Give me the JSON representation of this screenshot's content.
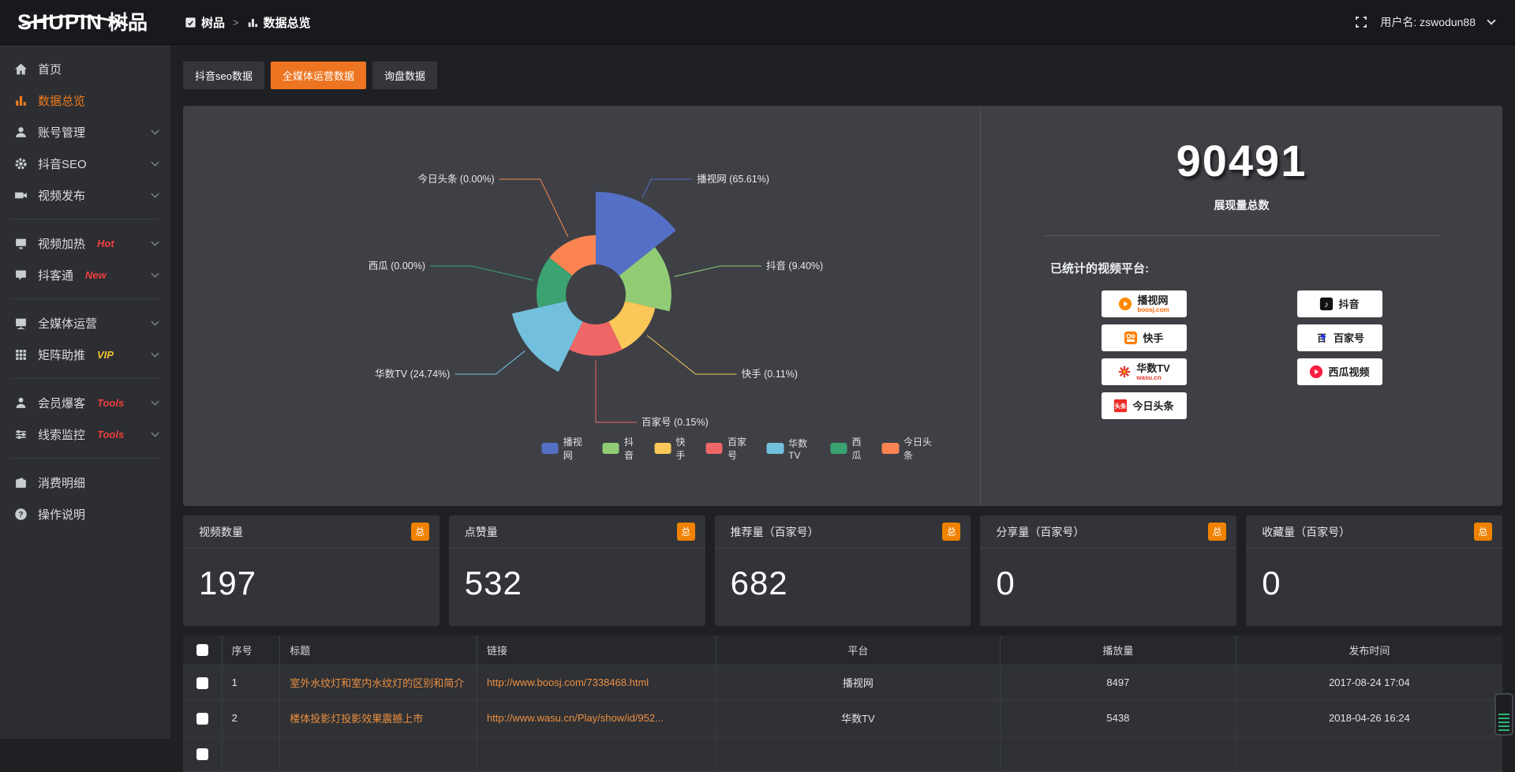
{
  "brand": {
    "logo_en": "SHUPIN",
    "logo_cn": "树品"
  },
  "topbar": {
    "breadcrumb_root": "树品",
    "breadcrumb_sep": ">",
    "breadcrumb_current": "数据总览",
    "username": "用户名: zswodun88",
    "icons": {
      "fullscreen": "fullscreen-icon",
      "root": "app-icon",
      "current": "bar-chart-icon",
      "caret": "chevron-down-icon"
    }
  },
  "sidebar": {
    "items": [
      {
        "label": "首页",
        "icon": "home-icon",
        "tag": ""
      },
      {
        "label": "数据总览",
        "icon": "bar-chart-icon",
        "tag": "",
        "active": true
      },
      {
        "label": "账号管理",
        "icon": "user-icon",
        "tag": "",
        "expandable": true
      },
      {
        "label": "抖音SEO",
        "icon": "gear-icon",
        "tag": "",
        "expandable": true
      },
      {
        "label": "视频发布",
        "icon": "video-icon",
        "tag": "",
        "expandable": true
      },
      {
        "label": "视频加热",
        "icon": "screen-icon",
        "tag": "Hot",
        "tag_color": "#f03e3e",
        "expandable": true
      },
      {
        "label": "抖客通",
        "icon": "chat-icon",
        "tag": "New",
        "tag_color": "#f03e3e",
        "expandable": true
      },
      {
        "label": "全媒体运营",
        "icon": "monitor-icon",
        "tag": "",
        "expandable": true
      },
      {
        "label": "矩阵助推",
        "icon": "grid-icon",
        "tag": "VIP",
        "tag_color": "#f1c232",
        "expandable": true
      },
      {
        "label": "会员爆客",
        "icon": "person-icon",
        "tag": "Tools",
        "tag_color": "#f03e3e",
        "expandable": true
      },
      {
        "label": "线索监控",
        "icon": "sliders-icon",
        "tag": "Tools",
        "tag_color": "#f03e3e",
        "expandable": true
      },
      {
        "label": "消费明细",
        "icon": "wallet-icon",
        "tag": ""
      },
      {
        "label": "操作说明",
        "icon": "help-icon",
        "tag": ""
      }
    ]
  },
  "tabs": [
    {
      "label": "抖音seo数据",
      "active": false
    },
    {
      "label": "全媒体运营数据",
      "active": true
    },
    {
      "label": "询盘数据",
      "active": false
    }
  ],
  "chart_data": {
    "type": "pie",
    "style": "nightingale-rose",
    "unit": "%",
    "series": [
      {
        "name": "播视网",
        "value": 65.61,
        "color": "#5470c6"
      },
      {
        "name": "抖音",
        "value": 9.4,
        "color": "#91cc75"
      },
      {
        "name": "快手",
        "value": 0.11,
        "color": "#fac858"
      },
      {
        "name": "百家号",
        "value": 0.15,
        "color": "#ee6666"
      },
      {
        "name": "华数TV",
        "value": 24.74,
        "color": "#73c0de"
      },
      {
        "name": "西瓜",
        "value": 0.0,
        "color": "#3ba272"
      },
      {
        "name": "今日头条",
        "value": 0.0,
        "color": "#fc8452"
      }
    ],
    "label_format": "{name} ({value}%)",
    "legend_position": "bottom",
    "inner_radius_px": 38,
    "outer_radius_px": 130
  },
  "summary": {
    "total": "90491",
    "total_label": "展现量总数",
    "platforms_label": "已统计的视频平台:",
    "platforms": [
      {
        "name": "播视网",
        "sub": "boosj.com",
        "icon": "boosj-logo",
        "color": "#ff8a00"
      },
      {
        "name": "快手",
        "sub": "",
        "icon": "kuaishou-logo",
        "color": "#ff7e00"
      },
      {
        "name": "华数TV",
        "sub": "wasu.cn",
        "icon": "wasu-logo",
        "color": "#e33b30"
      },
      {
        "name": "今日头条",
        "sub": "",
        "icon": "toutiao-logo",
        "color": "#ee2b24"
      },
      {
        "name": "抖音",
        "sub": "",
        "icon": "douyin-logo",
        "color": "#111111"
      },
      {
        "name": "百家号",
        "sub": "",
        "icon": "baijiahao-logo",
        "color": "#2932e1"
      },
      {
        "name": "西瓜视频",
        "sub": "",
        "icon": "xigua-logo",
        "color": "#fa1f41"
      }
    ]
  },
  "stat_cards": [
    {
      "title": "视频数量",
      "badge": "总",
      "value": "197"
    },
    {
      "title": "点赞量",
      "badge": "总",
      "value": "532"
    },
    {
      "title": "推荐量（百家号）",
      "badge": "总",
      "value": "682"
    },
    {
      "title": "分享量（百家号）",
      "badge": "总",
      "value": "0"
    },
    {
      "title": "收藏量（百家号）",
      "badge": "总",
      "value": "0"
    }
  ],
  "table": {
    "headers": [
      "序号",
      "标题",
      "链接",
      "平台",
      "播放量",
      "发布时间"
    ],
    "rows": [
      {
        "index": "1",
        "title": "室外水纹灯和室内水纹灯的区别和简介",
        "link": "http://www.boosj.com/7338468.html",
        "platform": "播视网",
        "plays": "8497",
        "time": "2017-08-24 17:04"
      },
      {
        "index": "2",
        "title": "楼体投影灯投影效果震撼上市",
        "link": "http://www.wasu.cn/Play/show/id/952...",
        "platform": "华数TV",
        "plays": "5438",
        "time": "2018-04-26 16:24"
      }
    ]
  },
  "colors": {
    "accent": "#ed7420",
    "badge": "#f08200",
    "link": "#ee8f40",
    "hot": "#f03e3e",
    "vip": "#f1c232",
    "panel": "#3e4045",
    "sidebar": "#2c2e32",
    "topbar": "#17191d"
  }
}
